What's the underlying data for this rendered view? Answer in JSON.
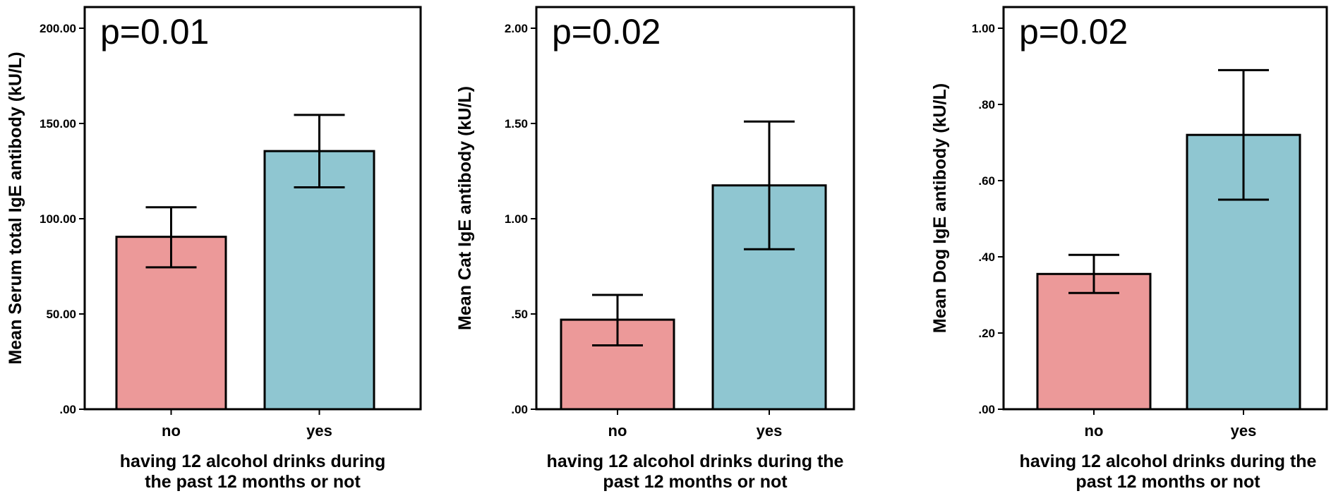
{
  "colors": {
    "no": "#ec9999",
    "yes": "#8fc6d1",
    "axis": "#000000"
  },
  "chart_data": [
    {
      "type": "bar",
      "annotation": "p=0.01",
      "ylabel": "Mean Serum total IgE antibody (kU/L)",
      "xlabel_lines": [
        "having 12 alcohol drinks during",
        "the past 12 months or not"
      ],
      "categories": [
        "no",
        "yes"
      ],
      "values": [
        90.5,
        135.5
      ],
      "error_low": [
        74.5,
        116.5
      ],
      "error_high": [
        106.0,
        154.5
      ],
      "ylim": [
        0,
        200
      ],
      "yticks": [
        0,
        50,
        100,
        150,
        200
      ],
      "ytick_labels": [
        ".00",
        "50.00",
        "100.00",
        "150.00",
        "200.00"
      ],
      "grid": false
    },
    {
      "type": "bar",
      "annotation": "p=0.02",
      "ylabel": "Mean Cat IgE antibody (kU/L)",
      "xlabel_lines": [
        "having 12 alcohol drinks during the",
        "past 12 months or not"
      ],
      "categories": [
        "no",
        "yes"
      ],
      "values": [
        0.47,
        1.175
      ],
      "error_low": [
        0.335,
        0.84
      ],
      "error_high": [
        0.6,
        1.51
      ],
      "ylim": [
        0,
        2
      ],
      "yticks": [
        0,
        0.5,
        1.0,
        1.5,
        2.0
      ],
      "ytick_labels": [
        ".00",
        ".50",
        "1.00",
        "1.50",
        "2.00"
      ],
      "grid": false
    },
    {
      "type": "bar",
      "annotation": "p=0.02",
      "ylabel": "Mean Dog IgE antibody (kU/L)",
      "xlabel_lines": [
        "having 12 alcohol drinks during the",
        "past 12 months or not"
      ],
      "categories": [
        "no",
        "yes"
      ],
      "values": [
        0.355,
        0.72
      ],
      "error_low": [
        0.305,
        0.55
      ],
      "error_high": [
        0.405,
        0.89
      ],
      "ylim": [
        0,
        1
      ],
      "yticks": [
        0,
        0.2,
        0.4,
        0.6,
        0.8,
        1.0
      ],
      "ytick_labels": [
        ".00",
        ".20",
        ".40",
        ".60",
        ".80",
        "1.00"
      ],
      "grid": false
    }
  ]
}
